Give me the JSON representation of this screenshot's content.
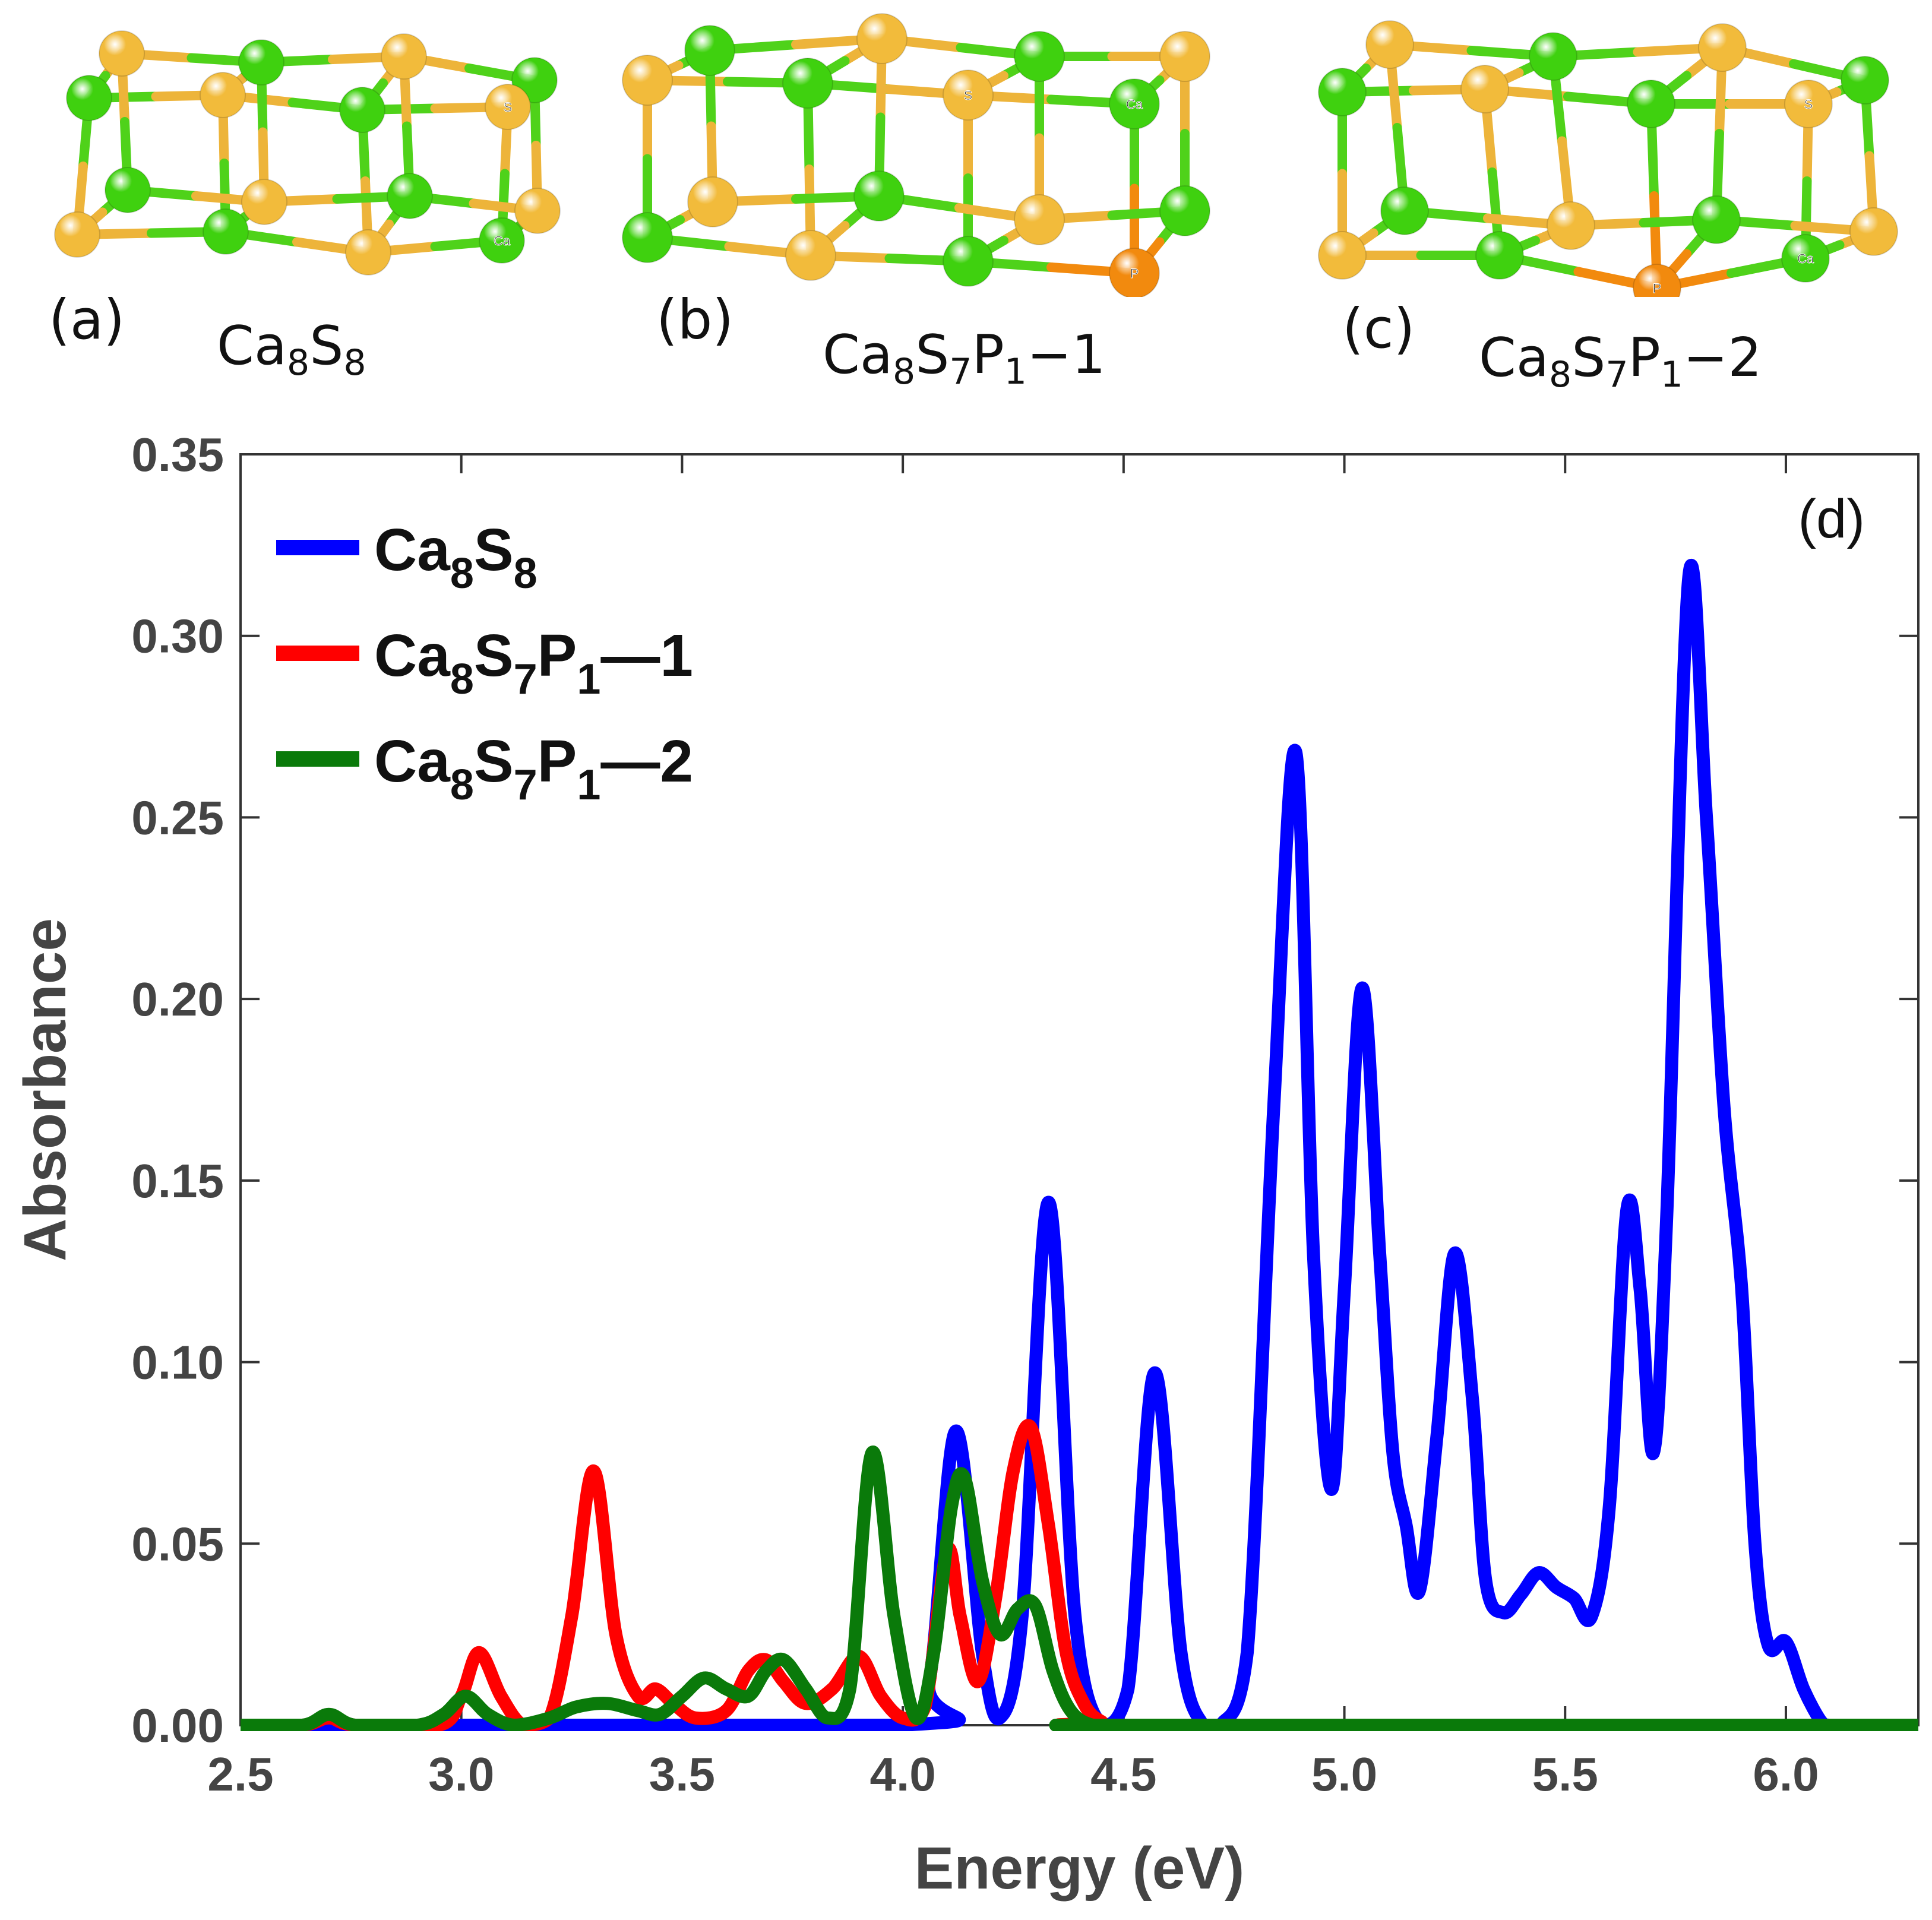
{
  "panels": [
    {
      "tag": "(a)",
      "formula": [
        {
          "t": "Ca"
        },
        {
          "s": "8"
        },
        {
          "t": "S"
        },
        {
          "s": "8"
        }
      ],
      "atom_labels": [
        "S",
        "Ca"
      ]
    },
    {
      "tag": "(b)",
      "formula": [
        {
          "t": "Ca"
        },
        {
          "s": "8"
        },
        {
          "t": "S"
        },
        {
          "s": "7"
        },
        {
          "t": "P"
        },
        {
          "s": "1"
        },
        {
          "t": "−1"
        }
      ],
      "atom_labels": [
        "S",
        "Ca",
        "P"
      ]
    },
    {
      "tag": "(c)",
      "formula": [
        {
          "t": "Ca"
        },
        {
          "s": "8"
        },
        {
          "t": "S"
        },
        {
          "s": "7"
        },
        {
          "t": "P"
        },
        {
          "s": "1"
        },
        {
          "t": "−2"
        }
      ],
      "atom_labels": [
        "S",
        "Ca",
        "P"
      ]
    }
  ],
  "colors": {
    "ca": "#3fd10f",
    "s": "#f2bb3b",
    "p": "#f28a0e",
    "bond_ca": "#4fd21a",
    "bond_s": "#edb43a"
  },
  "chart_data": {
    "type": "line",
    "panel_tag": "(d)",
    "xlabel": "Energy (eV)",
    "ylabel": "Absorbance",
    "xlim": [
      2.5,
      6.3
    ],
    "ylim": [
      0,
      0.35
    ],
    "xticks": [
      2.5,
      3.0,
      3.5,
      4.0,
      4.5,
      5.0,
      5.5,
      6.0
    ],
    "xtick_labels": [
      "2.5",
      "3.0",
      "3.5",
      "4.0",
      "4.5",
      "5.0",
      "5.5",
      "6.0"
    ],
    "yticks": [
      0,
      0.05,
      0.1,
      0.15,
      0.2,
      0.25,
      0.3,
      0.35
    ],
    "ytick_labels": [
      "0.00",
      "0.05",
      "0.10",
      "0.15",
      "0.20",
      "0.25",
      "0.30",
      "0.35"
    ],
    "grid": false,
    "legend_position": "top-left",
    "series": [
      {
        "name": "Ca8S8",
        "legend": [
          {
            "t": "Ca"
          },
          {
            "s": "8"
          },
          {
            "t": "S"
          },
          {
            "s": "8"
          }
        ],
        "color": "#0000ff",
        "x": [
          2.5,
          4.0,
          4.06,
          4.12,
          4.18,
          4.22,
          4.27,
          4.33,
          4.39,
          4.45,
          4.51,
          4.57,
          4.63,
          4.68,
          4.72,
          4.78,
          4.84,
          4.89,
          4.93,
          4.97,
          5.0,
          5.04,
          5.08,
          5.11,
          5.14,
          5.17,
          5.21,
          5.25,
          5.29,
          5.32,
          5.36,
          5.4,
          5.44,
          5.48,
          5.52,
          5.56,
          5.6,
          5.64,
          5.67,
          5.7,
          5.73,
          5.78,
          5.82,
          5.86,
          5.9,
          5.93,
          5.96,
          6.0,
          6.04,
          6.08,
          6.1,
          6.3
        ],
        "y": [
          0.0,
          0.0,
          0.012,
          0.081,
          0.02,
          0.002,
          0.03,
          0.144,
          0.03,
          0.0,
          0.01,
          0.097,
          0.02,
          0.0,
          0.0,
          0.02,
          0.17,
          0.268,
          0.13,
          0.065,
          0.12,
          0.203,
          0.13,
          0.075,
          0.055,
          0.037,
          0.08,
          0.13,
          0.09,
          0.04,
          0.031,
          0.036,
          0.042,
          0.038,
          0.035,
          0.03,
          0.06,
          0.142,
          0.12,
          0.075,
          0.14,
          0.316,
          0.25,
          0.17,
          0.12,
          0.05,
          0.022,
          0.023,
          0.01,
          0.001,
          0.0,
          0.0
        ]
      },
      {
        "name": "Ca8S7P1—1",
        "legend": [
          {
            "t": "Ca"
          },
          {
            "s": "8"
          },
          {
            "t": "S"
          },
          {
            "s": "7"
          },
          {
            "t": "P"
          },
          {
            "s": "1"
          },
          {
            "t": "—1"
          }
        ],
        "color": "#ff0000",
        "x": [
          2.5,
          2.64,
          2.7,
          2.76,
          2.95,
          3.0,
          3.04,
          3.09,
          3.14,
          3.2,
          3.25,
          3.3,
          3.35,
          3.4,
          3.44,
          3.48,
          3.53,
          3.6,
          3.65,
          3.69,
          3.73,
          3.78,
          3.84,
          3.9,
          3.95,
          4.0,
          4.05,
          4.1,
          4.13,
          4.17,
          4.21,
          4.25,
          4.29,
          4.33,
          4.37,
          4.41,
          4.45,
          4.5,
          6.3
        ],
        "y": [
          0.0,
          0.0,
          0.002,
          0.0,
          0.0,
          0.008,
          0.02,
          0.008,
          0.0,
          0.002,
          0.03,
          0.07,
          0.025,
          0.008,
          0.01,
          0.006,
          0.002,
          0.004,
          0.015,
          0.018,
          0.012,
          0.006,
          0.01,
          0.019,
          0.008,
          0.002,
          0.005,
          0.048,
          0.03,
          0.012,
          0.035,
          0.07,
          0.082,
          0.055,
          0.02,
          0.006,
          0.001,
          0.0,
          0.0
        ]
      },
      {
        "name": "Ca8S7P1—2",
        "legend": [
          {
            "t": "Ca"
          },
          {
            "s": "8"
          },
          {
            "t": "S"
          },
          {
            "s": "7"
          },
          {
            "t": "P"
          },
          {
            "s": "1"
          },
          {
            "t": "—2"
          }
        ],
        "color": "#0a7a0a",
        "x": [
          2.5,
          2.64,
          2.7,
          2.76,
          2.9,
          2.96,
          3.01,
          3.06,
          3.12,
          3.2,
          3.26,
          3.33,
          3.4,
          3.45,
          3.5,
          3.55,
          3.6,
          3.65,
          3.69,
          3.73,
          3.78,
          3.83,
          3.88,
          3.93,
          3.98,
          4.03,
          4.07,
          4.11,
          4.14,
          4.18,
          4.22,
          4.26,
          4.3,
          4.34,
          4.38,
          4.43,
          4.5,
          6.3
        ],
        "y": [
          0.0,
          0.0,
          0.003,
          0.0,
          0.0,
          0.003,
          0.008,
          0.003,
          0.0,
          0.002,
          0.005,
          0.006,
          0.004,
          0.003,
          0.008,
          0.013,
          0.01,
          0.008,
          0.015,
          0.018,
          0.01,
          0.002,
          0.01,
          0.075,
          0.03,
          0.002,
          0.02,
          0.06,
          0.068,
          0.04,
          0.025,
          0.032,
          0.033,
          0.015,
          0.004,
          0.0,
          0.0,
          0.0
        ]
      }
    ]
  }
}
